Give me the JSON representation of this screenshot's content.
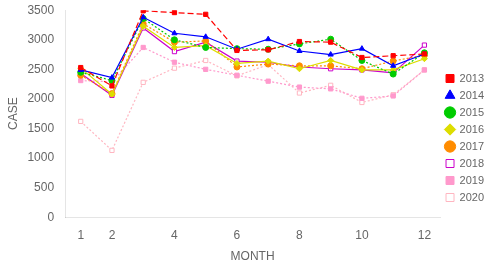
{
  "chart_data": {
    "type": "line",
    "xlabel": "MONTH",
    "ylabel": "CASE",
    "x": [
      1,
      2,
      3,
      4,
      5,
      6,
      7,
      8,
      9,
      10,
      11,
      12
    ],
    "xlim": [
      0.5,
      12.5
    ],
    "xticks": [
      1,
      2,
      4,
      6,
      8,
      10,
      12
    ],
    "ylim": [
      0,
      3500
    ],
    "yticks": [
      0,
      500,
      1000,
      1500,
      2000,
      2500,
      3000,
      3500
    ],
    "grid": false,
    "legend": "right",
    "series": [
      {
        "name": "2013",
        "color": "#FF0000",
        "marker": "square",
        "line_style": "dashed",
        "values": [
          2530,
          2220,
          3490,
          3460,
          3430,
          2820,
          2830,
          2970,
          2960,
          2700,
          2730,
          2760
        ]
      },
      {
        "name": "2014",
        "color": "#0000FF",
        "marker": "triangle",
        "line_style": "solid",
        "values": [
          2490,
          2360,
          3380,
          3110,
          3050,
          2840,
          3010,
          2810,
          2750,
          2850,
          2560,
          2760
        ]
      },
      {
        "name": "2015",
        "color": "#00CC00",
        "marker": "circle",
        "line_style": "dotted",
        "values": [
          2450,
          2310,
          3360,
          3000,
          2870,
          2850,
          2840,
          2930,
          3010,
          2650,
          2420,
          2780
        ]
      },
      {
        "name": "2016",
        "color": "#DDDD00",
        "marker": "diamond",
        "line_style": "solid",
        "values": [
          2520,
          2080,
          3230,
          2870,
          2900,
          2600,
          2640,
          2510,
          2650,
          2490,
          2490,
          2680
        ]
      },
      {
        "name": "2017",
        "color": "#FF8C00",
        "marker": "circle",
        "line_style": "dotted",
        "values": [
          2400,
          2090,
          3270,
          2960,
          2980,
          2540,
          2590,
          2560,
          2560,
          2510,
          2640,
          2740
        ]
      },
      {
        "name": "2018",
        "color": "#CC00CC",
        "marker": "open_square",
        "line_style": "solid",
        "values": [
          2430,
          2060,
          3200,
          2800,
          2960,
          2640,
          2620,
          2540,
          2510,
          2490,
          2440,
          2910
        ]
      },
      {
        "name": "2019",
        "color": "#FF99CC",
        "marker": "square",
        "line_style": "dotted",
        "values": [
          2310,
          2290,
          2870,
          2620,
          2500,
          2400,
          2300,
          2200,
          2170,
          2010,
          2050,
          2490
        ]
      },
      {
        "name": "2020",
        "color": "#FFB6C1",
        "marker": "open_square",
        "line_style": "dotted",
        "values": [
          1620,
          1130,
          2280,
          2520,
          2650,
          2390,
          2580,
          2100,
          2230,
          1940,
          2070,
          2490
        ]
      }
    ]
  }
}
